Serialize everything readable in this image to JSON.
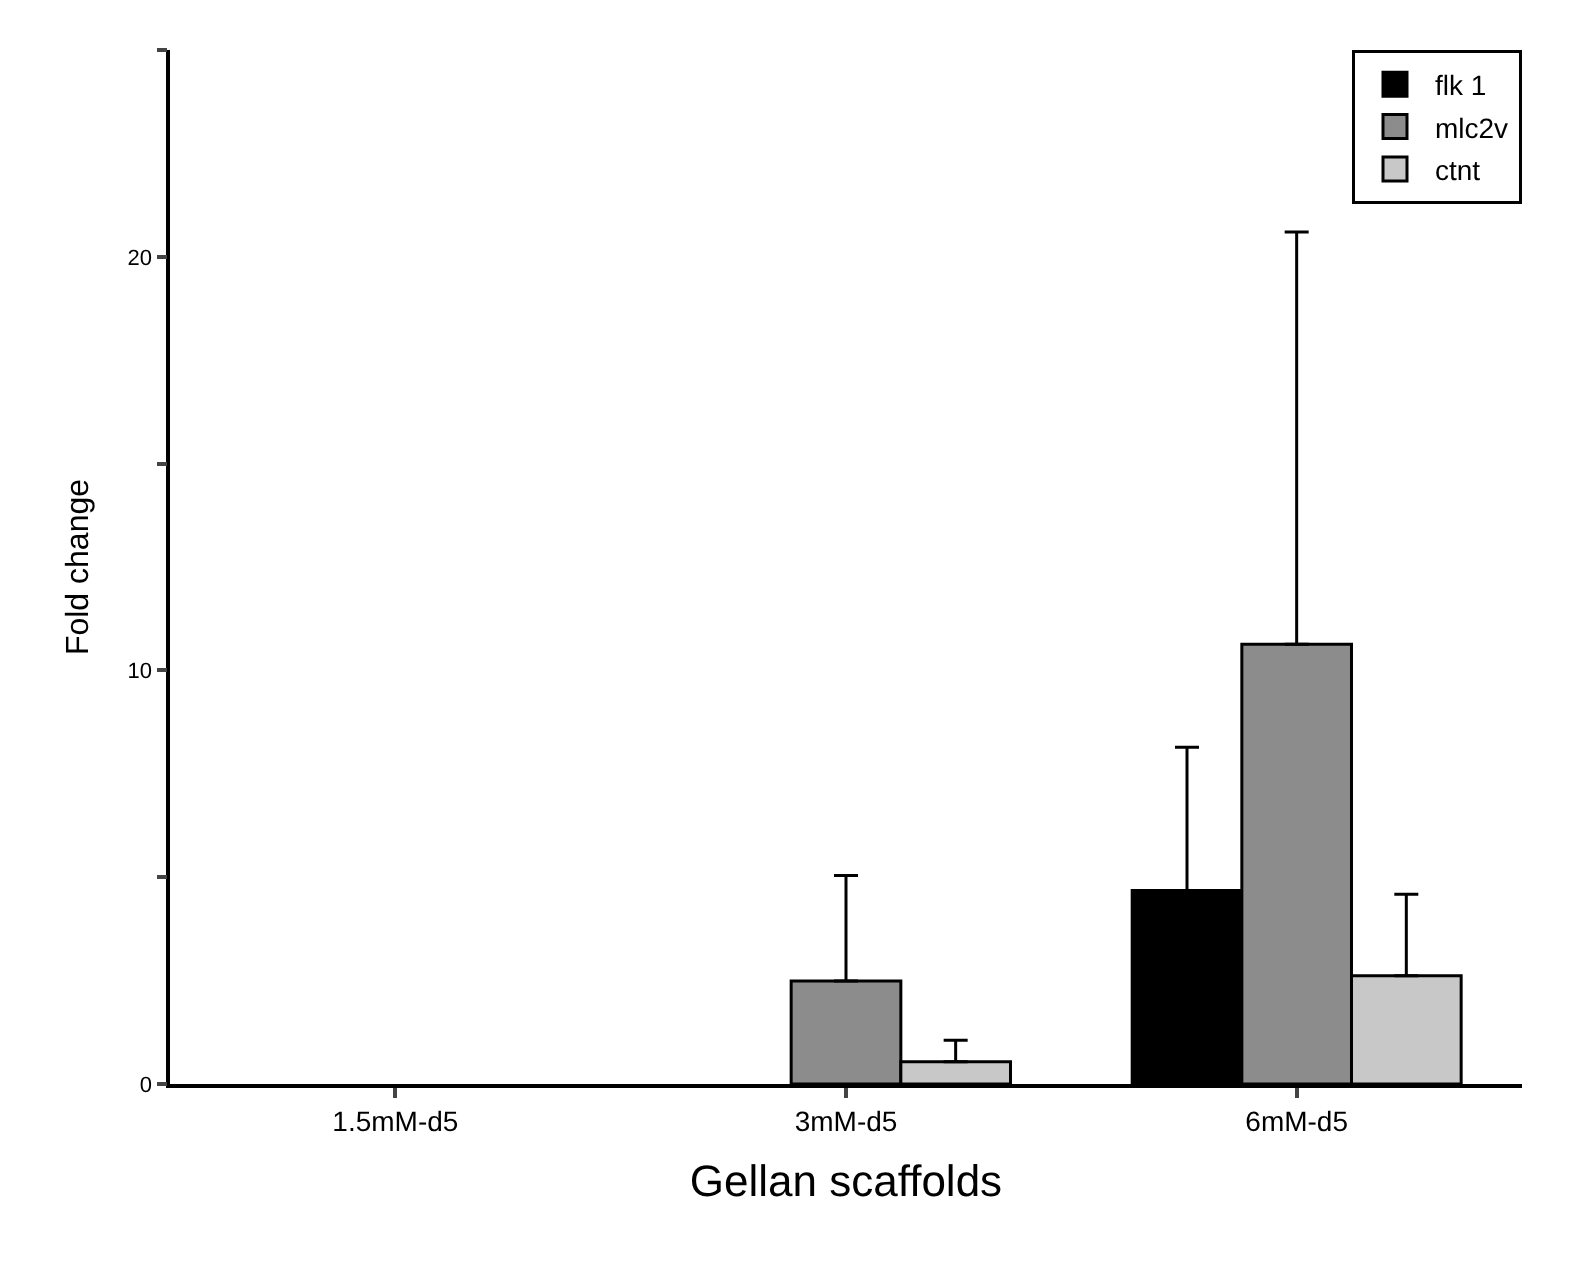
{
  "chart_data": {
    "type": "bar",
    "xlabel": "Gellan scaffolds",
    "ylabel": "Fold change",
    "categories": [
      "1.5mM-d5",
      "3mM-d5",
      "6mM-d5"
    ],
    "series": [
      {
        "name": "flk 1",
        "color": "#000000",
        "values": [
          null,
          null,
          4.68
        ],
        "errors": [
          null,
          null,
          3.46
        ]
      },
      {
        "name": "mlc2v",
        "color": "#8c8c8c",
        "values": [
          null,
          2.49,
          10.63
        ],
        "errors": [
          null,
          2.55,
          9.97
        ]
      },
      {
        "name": "ctnt",
        "color": "#c8c8c8",
        "values": [
          null,
          0.54,
          2.62
        ],
        "errors": [
          null,
          0.52,
          1.97
        ]
      }
    ],
    "ylim": [
      0,
      25
    ],
    "yticks": [
      0,
      {
        "value": 5,
        "label": null
      },
      10,
      {
        "value": 15,
        "label": null
      },
      20,
      {
        "value": 25,
        "label": null
      }
    ],
    "legend": "top right"
  }
}
